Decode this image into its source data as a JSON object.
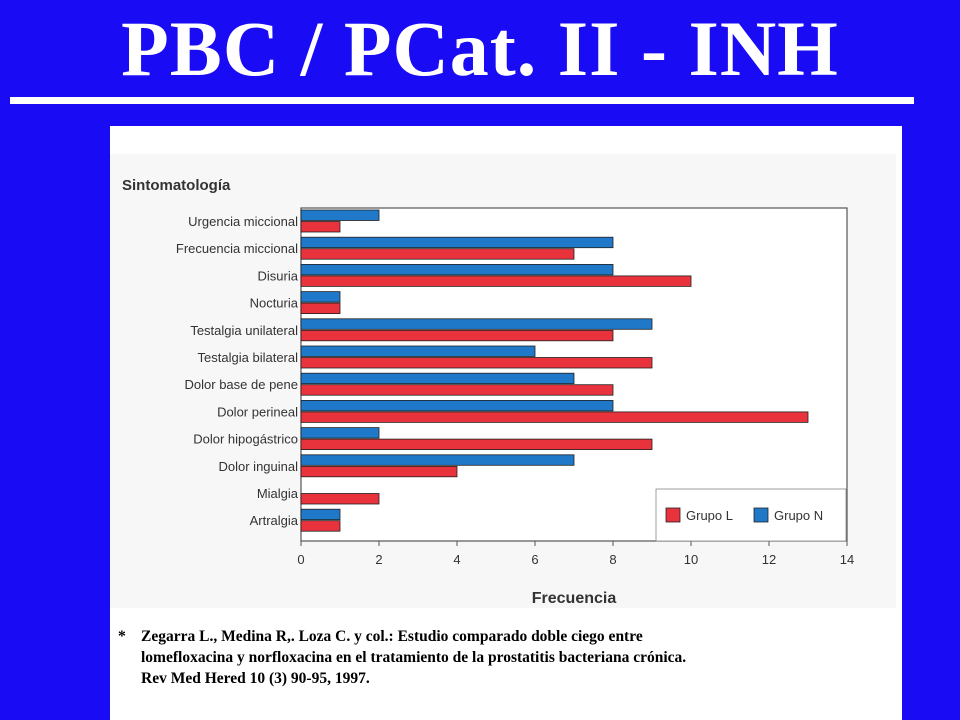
{
  "slide": {
    "title": "PBC / PCat. II - INH"
  },
  "citation": {
    "marker": "*",
    "lines": [
      "Zegarra L.,  Medina R,. Loza C. y col.: Estudio comparado doble ciego entre",
      "lomefloxacina y norfloxacina en el tratamiento de la prostatitis bacteriana crónica.",
      "Rev Med Hered 10 (3) 90-95, 1997."
    ]
  },
  "chart_data": {
    "type": "bar",
    "orientation": "horizontal",
    "title": "Sintomatología",
    "xlabel": "Frecuencia",
    "ylabel": "",
    "xlim": [
      0,
      14
    ],
    "xticks": [
      0,
      2,
      4,
      6,
      8,
      10,
      12,
      14
    ],
    "grid": false,
    "legend_position": "bottom-right",
    "categories": [
      "Urgencia miccional",
      "Frecuencia miccional",
      "Disuria",
      "Nocturia",
      "Testalgia unilateral",
      "Testalgia bilateral",
      "Dolor base de pene",
      "Dolor perineal",
      "Dolor hipogástrico",
      "Dolor inguinal",
      "Mialgia",
      "Artralgia"
    ],
    "series": [
      {
        "name": "Grupo N",
        "color": "#1f78c8",
        "values": [
          2,
          8,
          8,
          1,
          9,
          6,
          7,
          8,
          2,
          7,
          0,
          1
        ]
      },
      {
        "name": "Grupo L",
        "color": "#e8323c",
        "values": [
          1,
          7,
          10,
          1,
          8,
          9,
          8,
          13,
          9,
          4,
          2,
          1
        ]
      }
    ],
    "legend_order": [
      "Grupo L",
      "Grupo N"
    ]
  }
}
